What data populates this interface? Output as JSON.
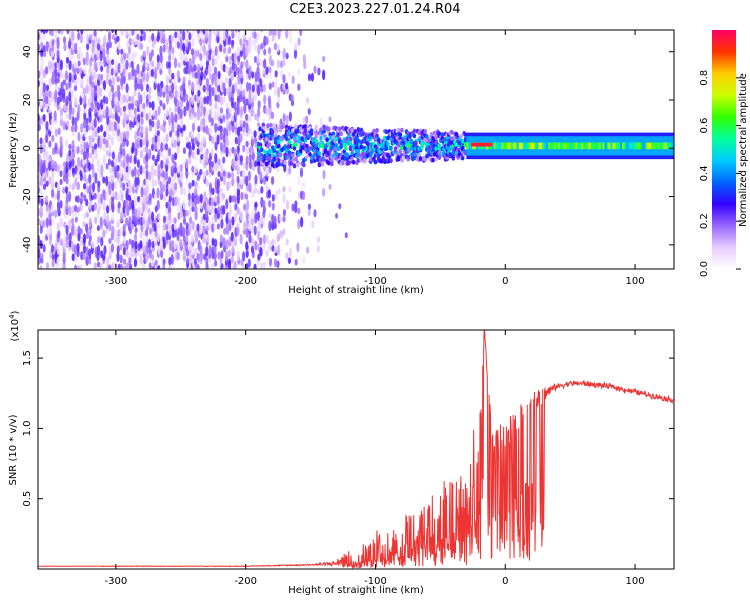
{
  "title": "C2E3.2023.227.01.24.R04",
  "chart_data": [
    {
      "type": "heatmap",
      "xlabel": "Height of straight line (km)",
      "ylabel": "Frequency (Hz)",
      "xlim": [
        -360,
        130
      ],
      "ylim": [
        -50,
        49
      ],
      "xticks": [
        -300,
        -200,
        -100,
        0,
        100
      ],
      "yticks": [
        -40,
        -20,
        0,
        20,
        40
      ],
      "colorbar": {
        "label": "Normalized spectral amplitude",
        "range": [
          0,
          1
        ],
        "ticks": [
          "0.0",
          "0.2",
          "0.4",
          "0.6",
          "0.8"
        ],
        "colors": [
          "#ffffff",
          "#e6ccff",
          "#9966ff",
          "#3300ff",
          "#0066ff",
          "#00ccff",
          "#00ff99",
          "#33ff00",
          "#ccff00",
          "#ffcc00",
          "#ff3300",
          "#ff0066"
        ]
      },
      "regions": [
        {
          "x_range": [
            -360,
            -140
          ],
          "freq_range": [
            -50,
            49
          ],
          "amplitude": 0.15,
          "pattern": "scattered noise"
        },
        {
          "x_range": [
            -190,
            -30
          ],
          "freq_range": [
            -8,
            10
          ],
          "amplitude": 0.4,
          "pattern": "broad band"
        },
        {
          "x_range": [
            -30,
            130
          ],
          "freq_range": [
            -3,
            5
          ],
          "amplitude": 0.7,
          "pattern": "narrow line"
        },
        {
          "x_range": [
            -25,
            -10
          ],
          "freq_range": [
            0,
            3
          ],
          "amplitude": 0.95,
          "pattern": "peak"
        }
      ]
    },
    {
      "type": "line",
      "xlabel": "Height of straight line (km)",
      "ylabel": "SNR (10 * v/v)",
      "y_multiplier": "(x10^4)",
      "y_multiplier_base": "(x10",
      "y_multiplier_exp": "4",
      "y_multiplier_close": ")",
      "xlim": [
        -360,
        130
      ],
      "ylim": [
        0,
        1.7
      ],
      "xticks": [
        -300,
        -200,
        -100,
        0,
        100
      ],
      "yticks": [
        "0.5",
        "1.0",
        "1.5"
      ],
      "ytick_values": [
        0.5,
        1.0,
        1.5
      ],
      "series": [
        {
          "color": "#ee3333",
          "x": [
            -360,
            -300,
            -250,
            -200,
            -150,
            -130,
            -120,
            -110,
            -100,
            -90,
            -80,
            -70,
            -60,
            -50,
            -40,
            -30,
            -20,
            -16,
            -10,
            0,
            10,
            20,
            30,
            40,
            50,
            60,
            70,
            80,
            90,
            100,
            110,
            120,
            130
          ],
          "y": [
            0.02,
            0.02,
            0.02,
            0.02,
            0.03,
            0.04,
            0.08,
            0.12,
            0.15,
            0.18,
            0.22,
            0.28,
            0.32,
            0.36,
            0.42,
            0.5,
            0.72,
            1.7,
            0.86,
            0.95,
            1.05,
            1.18,
            1.25,
            1.3,
            1.32,
            1.32,
            1.31,
            1.3,
            1.28,
            1.26,
            1.24,
            1.22,
            1.2
          ],
          "noise": [
            0.0,
            0.002,
            0.002,
            0.002,
            0.005,
            0.02,
            0.08,
            0.1,
            0.12,
            0.14,
            0.16,
            0.2,
            0.24,
            0.26,
            0.3,
            0.32,
            0.3,
            0.0,
            0.15,
            0.12,
            0.1,
            0.08,
            0.05,
            0.02,
            0.02,
            0.02,
            0.02,
            0.02,
            0.02,
            0.02,
            0.02,
            0.02,
            0.02
          ]
        }
      ]
    }
  ]
}
